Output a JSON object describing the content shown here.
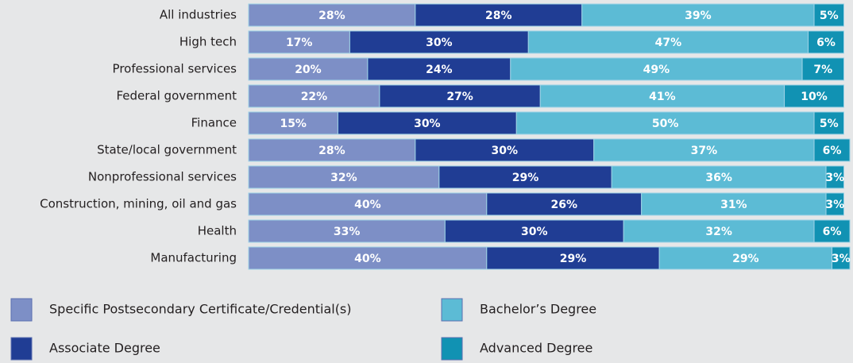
{
  "chart_data": {
    "type": "stacked_barh",
    "categories": [
      "All industries",
      "High tech",
      "Professional services",
      "Federal government",
      "Finance",
      "State/local government",
      "Nonprofessional services",
      "Construction, mining, oil and gas",
      "Health",
      "Manufacturing"
    ],
    "series": [
      {
        "name": "Specific Postsecondary Certificate/Credential(s)",
        "color": "#7d8fc6",
        "values": [
          28,
          17,
          20,
          22,
          15,
          28,
          32,
          40,
          33,
          40
        ],
        "value_labels": [
          "28%",
          "17%",
          "20%",
          "22%",
          "15%",
          "28%",
          "32%",
          "40%",
          "33%",
          "40%"
        ]
      },
      {
        "name": "Associate Degree",
        "color": "#203d94",
        "values": [
          28,
          30,
          24,
          27,
          30,
          30,
          29,
          26,
          30,
          29
        ],
        "value_labels": [
          "28%",
          "30%",
          "24%",
          "27%",
          "30%",
          "30%",
          "29%",
          "26%",
          "30%",
          "29%"
        ]
      },
      {
        "name": "Bachelor’s Degree",
        "color": "#5cbbd5",
        "values": [
          39,
          47,
          49,
          41,
          50,
          37,
          36,
          31,
          32,
          29
        ],
        "value_labels": [
          "39%",
          "47%",
          "49%",
          "41%",
          "50%",
          "37%",
          "36%",
          "31%",
          "32%",
          "29%"
        ]
      },
      {
        "name": "Advanced Degree",
        "color": "#1192b3",
        "values": [
          5,
          6,
          7,
          10,
          5,
          6,
          3,
          3,
          6,
          3
        ],
        "value_labels": [
          "5%",
          "6%",
          "7%",
          "10%",
          "5%",
          "6%",
          "3%",
          "3%",
          "6%",
          "3%"
        ]
      }
    ]
  }
}
